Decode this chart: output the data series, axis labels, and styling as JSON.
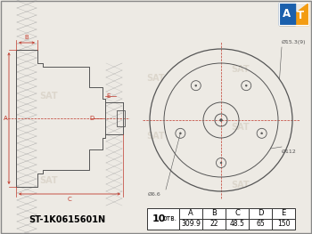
{
  "part_number": "ST-1K0615601N",
  "bolt_count": "10",
  "bolt_label": "отв.",
  "table_headers": [
    "A",
    "B",
    "C",
    "D",
    "E"
  ],
  "table_values": [
    "309.9",
    "22",
    "48.5",
    "65",
    "150"
  ],
  "dim_A": "A",
  "dim_B": "B",
  "dim_C": "C",
  "dim_D": "D",
  "dim_E": "E",
  "dia_outer": "Ø15.3(9)",
  "dia_bolt": "Ø112",
  "dia_hub": "Ø6.6",
  "bg_color": "#edeae4",
  "line_color": "#c0392b",
  "draw_line_color": "#555555",
  "watermark": "SAT"
}
